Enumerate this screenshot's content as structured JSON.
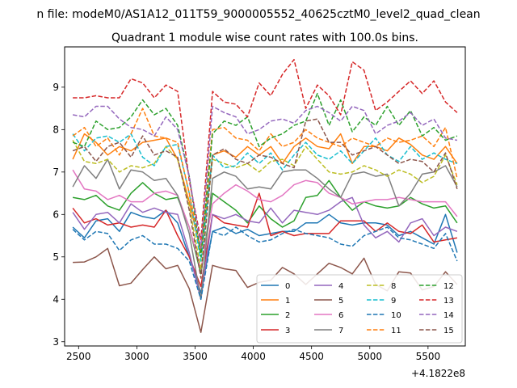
{
  "chart_data": {
    "type": "line",
    "suptitle": "n file: modeM0/AS1A12_011T59_9000005552_40625cztM0_level2_quad_clean",
    "title": "Quadrant 1 module wise count rates with 100.0s bins.",
    "xlabel": "",
    "ylabel": "",
    "x_offset_label": "+4.1822e8",
    "xlim": [
      2380,
      5820
    ],
    "ylim": [
      2.9,
      9.95
    ],
    "xticks": [
      2500,
      3000,
      3500,
      4000,
      4500,
      5000,
      5500
    ],
    "yticks": [
      3,
      4,
      5,
      6,
      7,
      8,
      9
    ],
    "x": [
      2450,
      2550,
      2650,
      2750,
      2850,
      2950,
      3050,
      3150,
      3250,
      3350,
      3450,
      3550,
      3650,
      3750,
      3850,
      3950,
      4050,
      4150,
      4250,
      4350,
      4450,
      4550,
      4650,
      4750,
      4850,
      4950,
      5050,
      5150,
      5250,
      5350,
      5450,
      5550,
      5650,
      5750
    ],
    "legend_location": "lower right",
    "series": [
      {
        "name": "0",
        "color": "#1f77b4",
        "dash": "solid",
        "values": [
          5.7,
          5.45,
          5.85,
          5.9,
          5.6,
          6.05,
          5.95,
          5.9,
          6.1,
          5.8,
          5.0,
          4.15,
          5.6,
          5.7,
          5.55,
          5.65,
          5.5,
          5.55,
          5.6,
          5.6,
          5.8,
          5.8,
          6.0,
          5.8,
          5.75,
          5.8,
          5.8,
          5.75,
          5.5,
          5.6,
          5.45,
          5.3,
          6.0,
          5.1
        ]
      },
      {
        "name": "1",
        "color": "#ff7f0e",
        "dash": "solid",
        "values": [
          7.3,
          7.9,
          7.7,
          7.4,
          7.6,
          7.5,
          7.7,
          7.75,
          7.8,
          7.3,
          6.3,
          5.1,
          7.4,
          7.5,
          7.35,
          7.6,
          7.4,
          7.6,
          7.2,
          7.6,
          7.8,
          7.6,
          7.55,
          7.9,
          7.2,
          7.6,
          7.6,
          7.5,
          7.8,
          7.65,
          7.4,
          7.3,
          7.6,
          7.2
        ]
      },
      {
        "name": "2",
        "color": "#2ca02c",
        "dash": "solid",
        "values": [
          6.4,
          6.35,
          6.45,
          6.2,
          6.1,
          6.5,
          6.75,
          6.5,
          6.35,
          6.4,
          5.7,
          4.6,
          6.5,
          6.3,
          6.1,
          5.8,
          6.2,
          5.9,
          5.7,
          5.85,
          6.4,
          6.45,
          6.8,
          6.4,
          6.1,
          6.3,
          6.2,
          6.15,
          6.2,
          6.4,
          6.25,
          6.15,
          6.2,
          5.8
        ]
      },
      {
        "name": "3",
        "color": "#d62728",
        "dash": "solid",
        "values": [
          6.15,
          5.8,
          5.9,
          5.75,
          5.8,
          5.7,
          5.75,
          5.7,
          6.1,
          5.5,
          5.0,
          4.3,
          6.0,
          5.8,
          5.75,
          5.7,
          6.5,
          5.5,
          5.6,
          5.5,
          5.55,
          5.55,
          5.55,
          5.85,
          5.85,
          5.85,
          5.6,
          5.8,
          5.6,
          5.55,
          5.75,
          5.35,
          5.4,
          5.45
        ]
      },
      {
        "name": "4",
        "color": "#9467bd",
        "dash": "solid",
        "values": [
          6.05,
          5.65,
          6.0,
          6.05,
          5.8,
          6.25,
          6.05,
          6.15,
          6.05,
          6.0,
          5.1,
          4.0,
          6.0,
          5.9,
          6.0,
          5.85,
          5.8,
          6.15,
          5.8,
          6.1,
          6.05,
          6.0,
          6.1,
          6.3,
          6.4,
          5.75,
          5.45,
          5.6,
          5.35,
          5.8,
          5.9,
          5.5,
          5.7,
          5.6
        ]
      },
      {
        "name": "5",
        "color": "#8c564b",
        "dash": "solid",
        "values": [
          4.87,
          4.88,
          5.0,
          5.2,
          4.32,
          4.38,
          4.7,
          5.0,
          4.72,
          4.8,
          4.25,
          3.22,
          4.8,
          4.72,
          4.68,
          4.28,
          4.4,
          4.45,
          4.75,
          4.6,
          4.35,
          4.6,
          4.85,
          4.75,
          4.6,
          4.97,
          4.35,
          4.2,
          4.65,
          4.62,
          4.22,
          4.3,
          4.65,
          4.35
        ]
      },
      {
        "name": "6",
        "color": "#e377c2",
        "dash": "solid",
        "values": [
          7.05,
          6.6,
          6.55,
          6.35,
          6.45,
          6.3,
          6.3,
          6.5,
          6.55,
          6.45,
          5.7,
          4.7,
          6.25,
          6.5,
          6.7,
          6.55,
          6.35,
          6.3,
          6.45,
          6.7,
          6.8,
          6.75,
          6.5,
          6.4,
          6.25,
          6.3,
          6.35,
          6.35,
          6.4,
          6.35,
          6.3,
          6.3,
          6.3,
          5.95
        ]
      },
      {
        "name": "7",
        "color": "#7f7f7f",
        "dash": "solid",
        "values": [
          6.65,
          7.15,
          6.85,
          7.3,
          6.6,
          7.05,
          7.0,
          6.8,
          6.85,
          6.45,
          5.55,
          4.0,
          6.85,
          7.0,
          6.9,
          6.6,
          6.65,
          6.6,
          7.0,
          7.05,
          7.05,
          6.85,
          6.6,
          6.4,
          6.95,
          7.0,
          6.9,
          6.95,
          6.2,
          6.5,
          6.95,
          7.0,
          7.15,
          6.65
        ]
      },
      {
        "name": "8",
        "color": "#bcbd22",
        "dash": "dashed",
        "values": [
          7.75,
          7.25,
          7.2,
          7.3,
          7.0,
          7.15,
          7.1,
          7.2,
          7.6,
          7.3,
          6.2,
          4.7,
          7.3,
          7.2,
          7.1,
          7.2,
          7.0,
          7.25,
          7.3,
          7.15,
          7.6,
          7.3,
          7.0,
          6.95,
          7.0,
          7.15,
          7.05,
          6.9,
          7.05,
          6.95,
          6.75,
          6.9,
          7.4,
          6.7
        ]
      },
      {
        "name": "9",
        "color": "#17becf",
        "dash": "dashed",
        "values": [
          7.9,
          7.5,
          7.8,
          7.85,
          7.7,
          7.9,
          7.35,
          7.15,
          7.6,
          7.65,
          6.5,
          4.9,
          7.4,
          7.1,
          7.15,
          7.45,
          7.2,
          7.45,
          7.05,
          7.4,
          7.7,
          7.4,
          7.3,
          7.5,
          7.2,
          7.5,
          7.8,
          7.4,
          7.25,
          7.6,
          7.3,
          7.45,
          7.3,
          7.2
        ]
      },
      {
        "name": "10",
        "color": "#1f77b4",
        "dash": "dashed",
        "values": [
          5.65,
          5.4,
          5.6,
          5.55,
          5.15,
          5.4,
          5.5,
          5.3,
          5.3,
          5.2,
          4.9,
          4.0,
          5.6,
          5.5,
          5.7,
          5.5,
          5.35,
          5.4,
          5.55,
          5.65,
          5.55,
          5.5,
          5.45,
          5.3,
          5.25,
          5.5,
          5.6,
          5.7,
          5.45,
          5.4,
          5.3,
          5.2,
          5.55,
          4.9
        ]
      },
      {
        "name": "11",
        "color": "#ff7f0e",
        "dash": "dashed",
        "values": [
          7.85,
          8.05,
          7.6,
          7.8,
          7.4,
          7.9,
          8.5,
          7.85,
          7.8,
          7.7,
          6.5,
          5.15,
          8.0,
          8.05,
          7.8,
          7.75,
          7.5,
          7.9,
          7.6,
          7.7,
          8.0,
          7.8,
          7.7,
          7.6,
          7.8,
          7.7,
          7.6,
          7.8,
          7.7,
          7.75,
          7.85,
          7.6,
          8.05,
          6.85
        ]
      },
      {
        "name": "12",
        "color": "#2ca02c",
        "dash": "dashed",
        "values": [
          7.7,
          7.6,
          8.2,
          8.0,
          8.05,
          8.3,
          8.7,
          8.35,
          8.5,
          8.1,
          6.9,
          5.0,
          7.9,
          8.2,
          8.1,
          8.3,
          7.6,
          7.8,
          7.9,
          8.1,
          8.2,
          8.85,
          8.1,
          8.7,
          7.95,
          8.3,
          8.1,
          8.55,
          8.1,
          8.45,
          7.85,
          8.05,
          7.75,
          7.85
        ]
      },
      {
        "name": "13",
        "color": "#d62728",
        "dash": "dashed",
        "values": [
          8.75,
          8.75,
          8.8,
          8.75,
          8.75,
          9.2,
          9.1,
          8.75,
          9.05,
          8.9,
          6.8,
          5.4,
          8.9,
          8.65,
          8.6,
          8.3,
          9.1,
          8.8,
          9.3,
          9.65,
          8.5,
          9.05,
          8.8,
          8.35,
          9.6,
          9.4,
          8.45,
          8.65,
          8.9,
          9.15,
          8.85,
          9.15,
          8.65,
          8.4
        ]
      },
      {
        "name": "14",
        "color": "#9467bd",
        "dash": "dashed",
        "values": [
          8.35,
          8.3,
          8.55,
          8.55,
          8.25,
          8.05,
          8.0,
          7.85,
          8.3,
          8.0,
          6.9,
          5.2,
          8.55,
          8.4,
          8.3,
          7.9,
          8.0,
          8.2,
          8.25,
          8.15,
          8.45,
          8.55,
          8.4,
          8.2,
          8.55,
          8.45,
          7.9,
          8.1,
          8.2,
          8.4,
          8.1,
          8.25,
          7.8,
          7.75
        ]
      },
      {
        "name": "15",
        "color": "#8c564b",
        "dash": "dashed",
        "values": [
          7.5,
          7.6,
          7.25,
          7.6,
          7.7,
          7.35,
          7.85,
          7.4,
          7.5,
          7.35,
          6.1,
          4.5,
          7.4,
          7.55,
          7.3,
          7.2,
          7.4,
          7.35,
          7.2,
          7.1,
          8.2,
          8.25,
          7.7,
          7.7,
          7.4,
          7.5,
          7.6,
          7.4,
          7.2,
          7.3,
          7.25,
          7.0,
          7.45,
          6.6
        ]
      }
    ]
  }
}
